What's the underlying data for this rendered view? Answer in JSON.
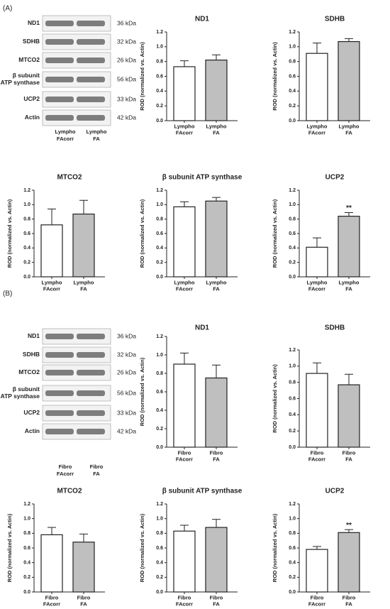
{
  "panels": [
    {
      "label": "(A)",
      "blot": {
        "rows": [
          {
            "protein": "ND1",
            "kda": "36 kDa"
          },
          {
            "protein": "SDHB",
            "kda": "32 kDa"
          },
          {
            "protein": "MTCO2",
            "kda": "26 kDa"
          },
          {
            "protein": "β subunit ATP synthase",
            "kda": "56 kDa"
          },
          {
            "protein": "UCP2",
            "kda": "33 kDa"
          },
          {
            "protein": "Actin",
            "kda": "42 kDa"
          }
        ],
        "lanes": [
          "Lympho FAcorr",
          "Lympho FA"
        ]
      }
    },
    {
      "label": "(B)",
      "blot": {
        "rows": [
          {
            "protein": "ND1",
            "kda": "36 kDa"
          },
          {
            "protein": "SDHB",
            "kda": "32 kDa"
          },
          {
            "protein": "MTCO2",
            "kda": "26 kDa"
          },
          {
            "protein": "β subunit ATP synthase",
            "kda": "56 kDa"
          },
          {
            "protein": "UCP2",
            "kda": "33 kDa"
          },
          {
            "protein": "Actin",
            "kda": "42 kDa"
          }
        ],
        "lanes": [
          "Fibro FAcorr",
          "Fibro FA"
        ]
      }
    }
  ],
  "chart_data": [
    {
      "type": "bar",
      "title": "ND1",
      "y_label": "ROD (normalized vs. Actin)",
      "categories": [
        "Lympho FAcorr",
        "Lympho FA"
      ],
      "values": [
        0.73,
        0.82
      ],
      "errors": [
        0.08,
        0.07
      ],
      "colors": [
        "#ffffff",
        "#bfbfbf"
      ],
      "ylim": [
        0,
        1.2
      ],
      "yticks": [
        {
          "value": 0,
          "label": "0.0"
        },
        0.2,
        0.4,
        0.6,
        0.8,
        {
          "value": 1,
          "label": "1.0"
        },
        1.2
      ]
    },
    {
      "type": "bar",
      "title": "SDHB",
      "y_label": "ROD (normalized vs. Actin)",
      "categories": [
        "Lympho FAcorr",
        "Lympho FA"
      ],
      "values": [
        0.91,
        1.07
      ],
      "errors": [
        0.14,
        0.04
      ],
      "colors": [
        "#ffffff",
        "#bfbfbf"
      ],
      "ylim": [
        0,
        1.2
      ],
      "yticks": [
        {
          "value": 0,
          "label": "0.0"
        },
        0.2,
        0.4,
        0.6,
        0.8,
        {
          "value": 1,
          "label": "1.0"
        },
        1.2
      ]
    },
    {
      "type": "bar",
      "title": "MTCO2",
      "y_label": "ROD (normalized vs. Actin)",
      "categories": [
        "Lympho FAcorr",
        "Lympho FA"
      ],
      "values": [
        0.72,
        0.87
      ],
      "errors": [
        0.22,
        0.19
      ],
      "colors": [
        "#ffffff",
        "#bfbfbf"
      ],
      "ylim": [
        0,
        1.2
      ],
      "yticks": [
        {
          "value": 0,
          "label": "0.0"
        },
        0.2,
        0.4,
        0.6,
        0.8,
        {
          "value": 1,
          "label": "1.0"
        },
        1.2
      ]
    },
    {
      "type": "bar",
      "title": "β subunit ATP synthase",
      "y_label": "ROD (normalized vs. Actin)",
      "categories": [
        "Lympho FAcorr",
        "Lympho FA"
      ],
      "values": [
        0.97,
        1.05
      ],
      "errors": [
        0.07,
        0.05
      ],
      "colors": [
        "#ffffff",
        "#bfbfbf"
      ],
      "ylim": [
        0,
        1.2
      ],
      "yticks": [
        {
          "value": 0,
          "label": "0.0"
        },
        0.2,
        0.4,
        0.6,
        0.8,
        {
          "value": 1,
          "label": "1.0"
        },
        1.2
      ]
    },
    {
      "type": "bar",
      "title": "UCP2",
      "y_label": "ROD (normalized vs. Actin)",
      "categories": [
        "Lympho FAcorr",
        "Lympho FA"
      ],
      "values": [
        0.41,
        0.84
      ],
      "errors": [
        0.13,
        0.05
      ],
      "colors": [
        "#ffffff",
        "#bfbfbf"
      ],
      "annotation": "**",
      "ylim": [
        0,
        1.2
      ],
      "yticks": [
        {
          "value": 0,
          "label": "0.0"
        },
        0.2,
        0.4,
        0.6,
        0.8,
        {
          "value": 1,
          "label": "1.0"
        },
        1.2
      ]
    },
    {
      "type": "bar",
      "title": "ND1",
      "y_label": "ROD (normalized vs. Actin)",
      "categories": [
        "Fibro FAcorr",
        "Fibro FA"
      ],
      "values": [
        0.9,
        0.75
      ],
      "errors": [
        0.12,
        0.14
      ],
      "colors": [
        "#ffffff",
        "#bfbfbf"
      ],
      "ylim": [
        0,
        1.2
      ],
      "yticks": [
        {
          "value": 0,
          "label": "0.0"
        },
        0.2,
        0.4,
        0.6,
        0.8,
        {
          "value": 1,
          "label": "1.0"
        },
        1.2
      ]
    },
    {
      "type": "bar",
      "title": "SDHB",
      "y_label": "ROD (normalized vs. Actin)",
      "categories": [
        "Fibro FAcorr",
        "Fibro FA"
      ],
      "values": [
        0.91,
        0.77
      ],
      "errors": [
        0.13,
        0.13
      ],
      "colors": [
        "#ffffff",
        "#bfbfbf"
      ],
      "ylim": [
        0,
        1.2
      ],
      "yticks": [
        {
          "value": 0,
          "label": "0.0"
        },
        0.2,
        0.4,
        0.6,
        0.8,
        {
          "value": 1,
          "label": "1.0"
        },
        1.2
      ]
    },
    {
      "type": "bar",
      "title": "MTCO2",
      "y_label": "ROD (normalized vs. Actin)",
      "categories": [
        "Fibro FAcorr",
        "Fibro FA"
      ],
      "values": [
        0.78,
        0.68
      ],
      "errors": [
        0.1,
        0.11
      ],
      "colors": [
        "#ffffff",
        "#bfbfbf"
      ],
      "ylim": [
        0,
        1.2
      ],
      "yticks": [
        {
          "value": 0,
          "label": "0.0"
        },
        0.2,
        0.4,
        0.6,
        0.8,
        {
          "value": 1,
          "label": "1.0"
        },
        1.2
      ]
    },
    {
      "type": "bar",
      "title": "β subunit ATP synthase",
      "y_label": "ROD (normalized vs. Actin)",
      "categories": [
        "Fibro FAcorr",
        "Fibro FA"
      ],
      "values": [
        0.83,
        0.88
      ],
      "errors": [
        0.08,
        0.11
      ],
      "colors": [
        "#ffffff",
        "#bfbfbf"
      ],
      "ylim": [
        0,
        1.2
      ],
      "yticks": [
        {
          "value": 0,
          "label": "0.0"
        },
        0.2,
        0.4,
        0.6,
        0.8,
        {
          "value": 1,
          "label": "1.0"
        },
        1.2
      ]
    },
    {
      "type": "bar",
      "title": "UCP2",
      "y_label": "ROD (normalized vs. Actin)",
      "categories": [
        "Fibro FAcorr",
        "Fibro FA"
      ],
      "values": [
        0.58,
        0.81
      ],
      "errors": [
        0.04,
        0.04
      ],
      "colors": [
        "#ffffff",
        "#bfbfbf"
      ],
      "annotation": "**",
      "ylim": [
        0,
        1.2
      ],
      "yticks": [
        {
          "value": 0,
          "label": "0.0"
        },
        0.2,
        0.4,
        0.6,
        0.8,
        {
          "value": 1,
          "label": "1.0"
        },
        1.2
      ]
    }
  ]
}
